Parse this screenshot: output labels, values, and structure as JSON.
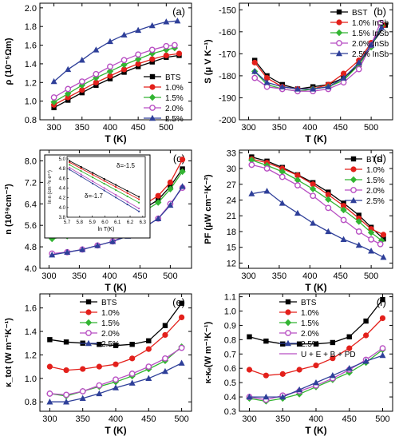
{
  "colors": {
    "black": "#000000",
    "red": "#e3201b",
    "green": "#33b533",
    "purple": "#b84fc3",
    "blue": "#2e3f99"
  },
  "chart_data": [
    {
      "panel": "(a)",
      "type": "line",
      "xlabel": "T (K)",
      "ylabel": "ρ (10⁻⁵Ωm)",
      "xlim": [
        275,
        545
      ],
      "ylim": [
        0.8,
        2.05
      ],
      "xticks": [
        300,
        350,
        400,
        450,
        500
      ],
      "yticks": [
        0.8,
        1.0,
        1.2,
        1.4,
        1.6,
        1.8,
        2.0
      ],
      "ytick_decimals": 1,
      "legend_pos": "middle-right",
      "series": [
        {
          "name": "BTS",
          "color": "black",
          "marker": "square",
          "x": [
            300,
            325,
            350,
            375,
            400,
            425,
            450,
            475,
            500,
            523
          ],
          "y": [
            0.93,
            1.01,
            1.09,
            1.17,
            1.24,
            1.31,
            1.37,
            1.42,
            1.47,
            1.49
          ]
        },
        {
          "name": "1.0%",
          "color": "red",
          "marker": "circle",
          "x": [
            300,
            325,
            350,
            375,
            400,
            425,
            450,
            475,
            500,
            523
          ],
          "y": [
            0.96,
            1.04,
            1.12,
            1.2,
            1.27,
            1.34,
            1.4,
            1.45,
            1.49,
            1.51
          ]
        },
        {
          "name": "1.5%",
          "color": "green",
          "marker": "diamond",
          "x": [
            300,
            325,
            350,
            375,
            400,
            425,
            450,
            475,
            500,
            515
          ],
          "y": [
            0.99,
            1.08,
            1.17,
            1.25,
            1.32,
            1.39,
            1.45,
            1.51,
            1.55,
            1.57
          ]
        },
        {
          "name": "2.0%",
          "color": "purple",
          "marker": "circle-open",
          "x": [
            300,
            325,
            350,
            375,
            400,
            425,
            450,
            475,
            500,
            515
          ],
          "y": [
            1.04,
            1.13,
            1.21,
            1.29,
            1.37,
            1.44,
            1.5,
            1.55,
            1.59,
            1.6
          ]
        },
        {
          "name": "2.5%",
          "color": "blue",
          "marker": "triangle",
          "x": [
            300,
            325,
            350,
            375,
            400,
            425,
            450,
            475,
            500,
            520
          ],
          "y": [
            1.21,
            1.34,
            1.44,
            1.55,
            1.64,
            1.71,
            1.76,
            1.81,
            1.85,
            1.86
          ]
        }
      ]
    },
    {
      "panel": "(b)",
      "type": "line",
      "xlabel": "T (K)",
      "ylabel": "S (μ V K⁻¹)",
      "xlim": [
        285,
        535
      ],
      "ylim": [
        -200,
        -147
      ],
      "xticks": [
        300,
        350,
        400,
        450,
        500
      ],
      "yticks": [
        -200,
        -190,
        -180,
        -170,
        -160,
        -150
      ],
      "ytick_decimals": 0,
      "legend_pos": "top-right",
      "series": [
        {
          "name": "BST",
          "color": "black",
          "marker": "square",
          "x": [
            310,
            330,
            355,
            380,
            405,
            430,
            455,
            480,
            500,
            523
          ],
          "y": [
            -173,
            -180,
            -184,
            -186,
            -185,
            -184,
            -181,
            -175,
            -166,
            -157
          ]
        },
        {
          "name": "1.0% InSb",
          "color": "red",
          "marker": "circle",
          "x": [
            310,
            330,
            355,
            380,
            405,
            430,
            455,
            480,
            500,
            520
          ],
          "y": [
            -174,
            -181,
            -185,
            -186,
            -186,
            -184,
            -179,
            -173,
            -165,
            -157
          ]
        },
        {
          "name": "1.5% InSb",
          "color": "green",
          "marker": "diamond",
          "x": [
            310,
            330,
            355,
            380,
            405,
            430,
            455,
            480,
            500,
            517
          ],
          "y": [
            -178,
            -184,
            -186,
            -187,
            -186,
            -185,
            -182,
            -175,
            -167,
            -157
          ]
        },
        {
          "name": "2.0% InSb",
          "color": "purple",
          "marker": "circle-open",
          "x": [
            310,
            330,
            355,
            380,
            405,
            430,
            455,
            480,
            500,
            515
          ],
          "y": [
            -181,
            -185,
            -186,
            -187,
            -187,
            -186,
            -183,
            -177,
            -166,
            -156
          ]
        },
        {
          "name": "2.5% InSb",
          "color": "blue",
          "marker": "triangle",
          "x": [
            310,
            330,
            355,
            380,
            405,
            430,
            455,
            480,
            500,
            517
          ],
          "y": [
            -178,
            -183,
            -185,
            -186,
            -186,
            -185,
            -181,
            -174,
            -166,
            -158
          ]
        }
      ]
    },
    {
      "panel": "(c)",
      "type": "line",
      "xlabel": "T (K)",
      "ylabel": "n (10¹⁹cm⁻³)",
      "xlim": [
        285,
        535
      ],
      "ylim": [
        4.0,
        8.4
      ],
      "xticks": [
        300,
        350,
        400,
        450,
        500
      ],
      "yticks": [
        4.0,
        4.8,
        5.6,
        6.4,
        7.2,
        8.0
      ],
      "ytick_decimals": 1,
      "legend_pos": "none",
      "series": [
        {
          "name": "BTS",
          "color": "black",
          "marker": "square",
          "x": [
            305,
            330,
            355,
            380,
            405,
            430,
            455,
            480,
            500,
            520
          ],
          "y": [
            5.3,
            5.4,
            5.5,
            5.6,
            5.75,
            5.95,
            6.2,
            6.55,
            7.05,
            7.7
          ]
        },
        {
          "name": "1.0%",
          "color": "red",
          "marker": "circle",
          "x": [
            305,
            330,
            355,
            380,
            405,
            430,
            455,
            480,
            500,
            520
          ],
          "y": [
            5.35,
            5.45,
            5.6,
            5.75,
            5.9,
            6.1,
            6.35,
            6.7,
            7.2,
            8.05
          ]
        },
        {
          "name": "1.5%",
          "color": "green",
          "marker": "diamond",
          "x": [
            305,
            330,
            355,
            380,
            405,
            430,
            455,
            480,
            500,
            520
          ],
          "y": [
            5.1,
            5.2,
            5.35,
            5.5,
            5.65,
            5.85,
            6.1,
            6.45,
            6.95,
            7.6
          ]
        },
        {
          "name": "2.0%",
          "color": "purple",
          "marker": "circle-open",
          "x": [
            305,
            330,
            355,
            380,
            405,
            430,
            455,
            480,
            500,
            520
          ],
          "y": [
            4.55,
            4.6,
            4.7,
            4.85,
            5.0,
            5.25,
            5.5,
            5.85,
            6.4,
            7.0
          ]
        },
        {
          "name": "2.5%",
          "color": "blue",
          "marker": "triangle",
          "x": [
            305,
            330,
            355,
            380,
            405,
            430,
            455,
            480,
            500,
            520
          ],
          "y": [
            4.5,
            4.6,
            4.7,
            4.85,
            5.0,
            5.2,
            5.5,
            5.85,
            6.35,
            7.05
          ]
        }
      ],
      "inset": {
        "xlabel": "ln T(K)",
        "ylabel": "ln n (cm⁻³x e⁴⁴)",
        "xlim": [
          5.7,
          6.32
        ],
        "ylim": [
          3.8,
          5.05
        ],
        "xticks": [
          5.7,
          5.8,
          5.9,
          6.0,
          6.1,
          6.2,
          6.3
        ],
        "yticks": [
          3.8,
          4.0,
          4.2,
          4.4,
          4.6,
          4.8,
          5.0
        ],
        "annotations": [
          "δ=-1.5",
          "δ=-1.7"
        ],
        "series": [
          {
            "color": "black",
            "x": [
              5.72,
              6.27
            ],
            "y": [
              4.96,
              4.22
            ]
          },
          {
            "color": "red",
            "x": [
              5.72,
              6.27
            ],
            "y": [
              4.93,
              4.17
            ]
          },
          {
            "color": "green",
            "x": [
              5.72,
              6.27
            ],
            "y": [
              4.88,
              4.1
            ]
          },
          {
            "color": "purple",
            "x": [
              5.72,
              6.27
            ],
            "y": [
              4.82,
              3.98
            ]
          },
          {
            "color": "blue",
            "x": [
              5.72,
              6.27
            ],
            "y": [
              4.78,
              3.92
            ]
          }
        ]
      }
    },
    {
      "panel": "(d)",
      "type": "line",
      "xlabel": "T (K)",
      "ylabel": "PF (μW cm⁻¹K⁻²)",
      "xlim": [
        285,
        535
      ],
      "ylim": [
        11,
        33.5
      ],
      "xticks": [
        300,
        350,
        400,
        450,
        500
      ],
      "yticks": [
        12,
        15,
        18,
        21,
        24,
        27,
        30,
        33
      ],
      "ytick_decimals": 0,
      "legend_pos": "top-right",
      "series": [
        {
          "name": "BTS",
          "color": "black",
          "marker": "square",
          "x": [
            305,
            330,
            355,
            380,
            405,
            430,
            455,
            480,
            500,
            520
          ],
          "y": [
            32.2,
            31.4,
            30.2,
            28.8,
            27.3,
            25.5,
            23.4,
            21.1,
            18.8,
            16.6
          ]
        },
        {
          "name": "1.0%",
          "color": "red",
          "marker": "circle",
          "x": [
            305,
            330,
            355,
            380,
            405,
            430,
            455,
            480,
            500,
            520
          ],
          "y": [
            31.8,
            31.1,
            30.0,
            28.7,
            27.0,
            25.0,
            22.9,
            20.5,
            18.5,
            17.4
          ]
        },
        {
          "name": "1.5%",
          "color": "green",
          "marker": "diamond",
          "x": [
            305,
            330,
            355,
            380,
            405,
            430,
            455,
            480,
            500,
            517
          ],
          "y": [
            31.6,
            30.6,
            29.4,
            27.8,
            26.1,
            24.1,
            22.1,
            19.9,
            17.8,
            16.3
          ]
        },
        {
          "name": "2.0%",
          "color": "purple",
          "marker": "circle-open",
          "x": [
            305,
            330,
            355,
            380,
            405,
            430,
            455,
            480,
            500,
            515
          ],
          "y": [
            30.7,
            30.0,
            28.4,
            26.8,
            24.8,
            22.5,
            20.2,
            18.0,
            16.5,
            15.6
          ]
        },
        {
          "name": "2.5%",
          "color": "blue",
          "marker": "triangle",
          "x": [
            305,
            330,
            355,
            380,
            405,
            430,
            455,
            480,
            500,
            520
          ],
          "y": [
            25.2,
            25.7,
            23.4,
            21.5,
            19.6,
            18.0,
            16.5,
            15.4,
            14.3,
            13.1
          ]
        }
      ]
    },
    {
      "panel": "(e)",
      "type": "line",
      "xlabel": "T (K)",
      "ylabel": "κ_tot (W m⁻¹K⁻¹)",
      "xlim": [
        285,
        515
      ],
      "ylim": [
        0.72,
        1.72
      ],
      "xticks": [
        300,
        350,
        400,
        450,
        500
      ],
      "yticks": [
        0.8,
        1.0,
        1.2,
        1.4,
        1.6
      ],
      "ytick_decimals": 1,
      "legend_pos": "top-left",
      "series": [
        {
          "name": "BTS",
          "color": "black",
          "marker": "square",
          "x": [
            300,
            325,
            350,
            375,
            400,
            425,
            450,
            475,
            500
          ],
          "y": [
            1.33,
            1.31,
            1.3,
            1.29,
            1.28,
            1.29,
            1.32,
            1.45,
            1.64
          ]
        },
        {
          "name": "1.0%",
          "color": "red",
          "marker": "circle",
          "x": [
            300,
            325,
            350,
            375,
            400,
            425,
            450,
            475,
            500
          ],
          "y": [
            1.1,
            1.07,
            1.08,
            1.1,
            1.12,
            1.17,
            1.25,
            1.37,
            1.52
          ]
        },
        {
          "name": "1.5%",
          "color": "green",
          "marker": "diamond",
          "x": [
            300,
            325,
            350,
            375,
            400,
            425,
            450,
            475,
            500
          ],
          "y": [
            0.87,
            0.85,
            0.89,
            0.93,
            0.97,
            1.02,
            1.08,
            1.15,
            1.27
          ]
        },
        {
          "name": "2.0%",
          "color": "purple",
          "marker": "circle-open",
          "x": [
            300,
            325,
            350,
            375,
            400,
            425,
            450,
            475,
            500
          ],
          "y": [
            0.87,
            0.86,
            0.89,
            0.94,
            0.99,
            1.04,
            1.1,
            1.17,
            1.26
          ]
        },
        {
          "name": "2.5%",
          "color": "blue",
          "marker": "triangle",
          "x": [
            300,
            325,
            350,
            375,
            400,
            425,
            450,
            475,
            500
          ],
          "y": [
            0.8,
            0.8,
            0.83,
            0.87,
            0.92,
            0.96,
            1.0,
            1.06,
            1.13
          ]
        }
      ]
    },
    {
      "panel": "(f)",
      "type": "line",
      "xlabel": "T (K)",
      "ylabel": "κ-κₑ(W m⁻¹K⁻¹)",
      "xlim": [
        285,
        515
      ],
      "ylim": [
        0.3,
        1.12
      ],
      "xticks": [
        300,
        350,
        400,
        450,
        500
      ],
      "yticks": [
        0.3,
        0.4,
        0.5,
        0.6,
        0.7,
        0.8,
        0.9,
        1.0,
        1.1
      ],
      "ytick_decimals": 1,
      "legend_pos": "top-left",
      "series": [
        {
          "name": "BTS",
          "color": "black",
          "marker": "square",
          "x": [
            300,
            325,
            350,
            375,
            400,
            425,
            450,
            475,
            500
          ],
          "y": [
            0.82,
            0.79,
            0.77,
            0.77,
            0.77,
            0.78,
            0.82,
            0.93,
            1.08
          ]
        },
        {
          "name": "1.0%",
          "color": "red",
          "marker": "circle",
          "x": [
            300,
            325,
            350,
            375,
            400,
            425,
            450,
            475,
            500
          ],
          "y": [
            0.59,
            0.55,
            0.56,
            0.59,
            0.62,
            0.67,
            0.74,
            0.83,
            0.95
          ]
        },
        {
          "name": "1.5%",
          "color": "green",
          "marker": "diamond",
          "x": [
            300,
            325,
            350,
            375,
            400,
            425,
            450,
            475,
            500
          ],
          "y": [
            0.39,
            0.37,
            0.39,
            0.42,
            0.47,
            0.52,
            0.57,
            0.64,
            0.73
          ]
        },
        {
          "name": "2.0%",
          "color": "purple",
          "marker": "circle-open",
          "x": [
            300,
            325,
            350,
            375,
            400,
            425,
            450,
            475,
            500
          ],
          "y": [
            0.4,
            0.38,
            0.41,
            0.44,
            0.48,
            0.53,
            0.59,
            0.66,
            0.74
          ]
        },
        {
          "name": "2.5%",
          "color": "blue",
          "marker": "triangle",
          "x": [
            300,
            325,
            350,
            375,
            400,
            425,
            450,
            475,
            500
          ],
          "y": [
            0.4,
            0.4,
            0.4,
            0.45,
            0.5,
            0.55,
            0.6,
            0.65,
            0.69
          ]
        },
        {
          "name": "U + E + B + PD",
          "color": "purple",
          "marker": "none",
          "line_only": true,
          "x": [],
          "y": []
        }
      ]
    }
  ]
}
